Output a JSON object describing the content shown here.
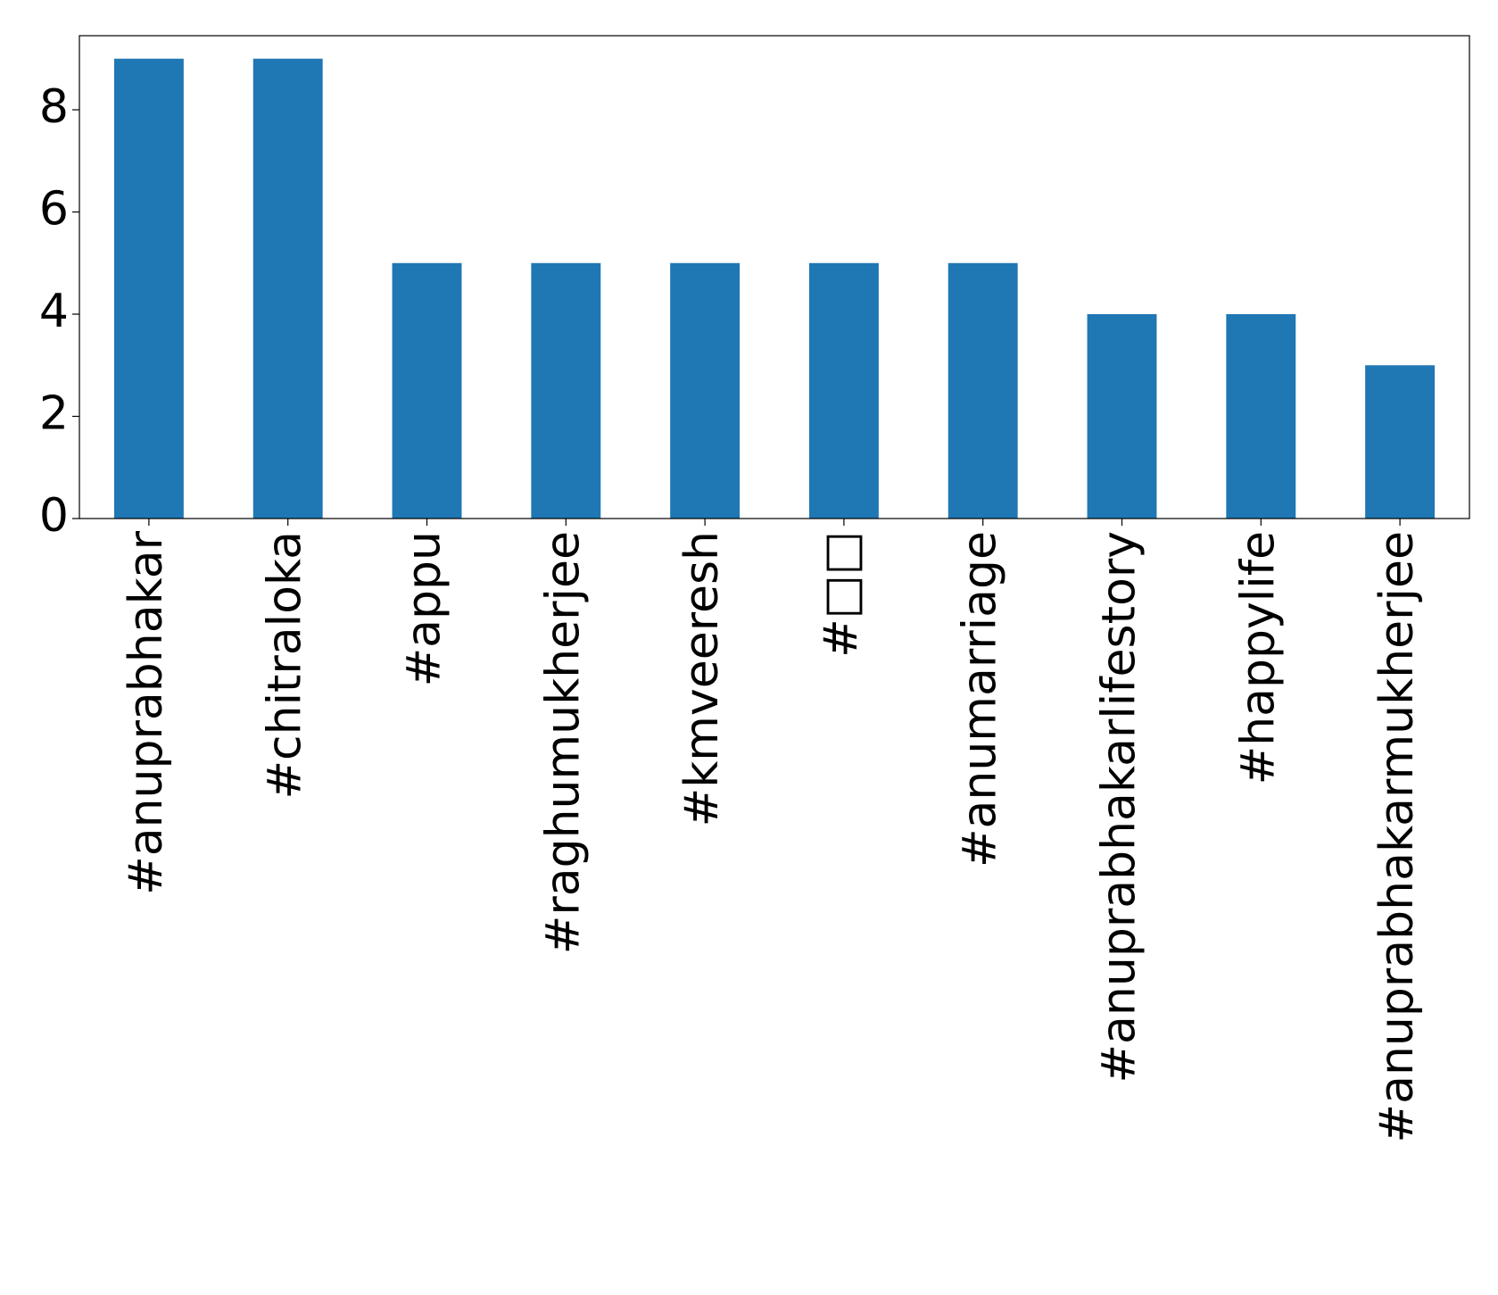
{
  "chart_data": {
    "type": "bar",
    "categories": [
      "#anuprabhakar",
      "#chitraloka",
      "#appu",
      "#raghumukherjee",
      "#kmveeresh",
      "#□□",
      "#anumarriage",
      "#anuprabhakarlifestory",
      "#happylife",
      "#anuprabhakarmukherjee"
    ],
    "values": [
      9,
      9,
      5,
      5,
      5,
      5,
      5,
      4,
      4,
      3
    ],
    "color": "#1f77b4",
    "ylim": [
      0,
      9.45
    ],
    "yticks": [
      0,
      2,
      4,
      6,
      8
    ],
    "grid": false
  }
}
